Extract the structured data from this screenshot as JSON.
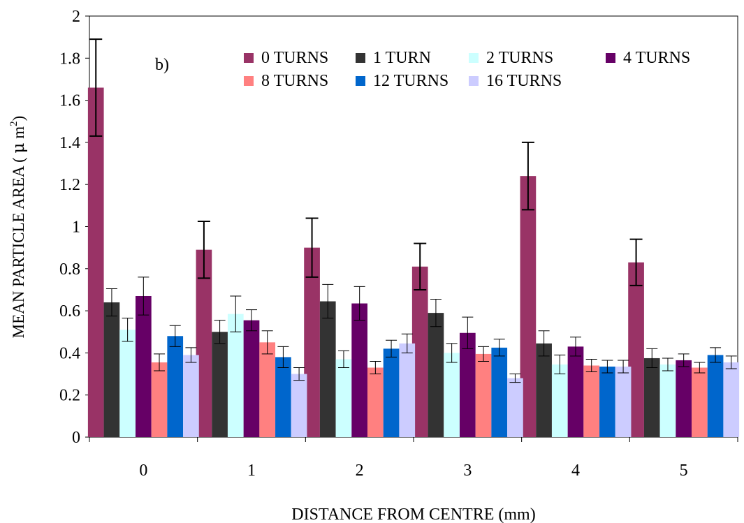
{
  "chart_data": {
    "type": "bar",
    "panel_label": "b)",
    "xlabel": "DISTANCE FROM CENTRE (mm)",
    "ylabel": {
      "prefix": "MEAN PARTICLE AREA ( ",
      "mu": "μ",
      "unit": " m",
      "exponent": "2",
      "suffix": ")"
    },
    "ylim": [
      0,
      2
    ],
    "yticks": [
      "0",
      "0.2",
      "0.4",
      "0.6",
      "0.8",
      "1",
      "1.2",
      "1.4",
      "1.6",
      "1.8",
      "2"
    ],
    "categories": [
      "0",
      "1",
      "2",
      "3",
      "4",
      "5"
    ],
    "grid": false,
    "legend_position": "top-right",
    "series": [
      {
        "name": "0 TURNS",
        "color": "#993366",
        "values": [
          1.66,
          0.89,
          0.9,
          0.81,
          1.24,
          0.83
        ],
        "errors": [
          0.23,
          0.135,
          0.14,
          0.11,
          0.16,
          0.11
        ]
      },
      {
        "name": "1 TURN",
        "color": "#333333",
        "values": [
          0.64,
          0.5,
          0.645,
          0.59,
          0.445,
          0.375
        ],
        "errors": [
          0.065,
          0.055,
          0.08,
          0.065,
          0.06,
          0.045
        ]
      },
      {
        "name": "2 TURNS",
        "color": "#CCFFFF",
        "values": [
          0.51,
          0.585,
          0.37,
          0.4,
          0.345,
          0.345
        ],
        "errors": [
          0.055,
          0.085,
          0.04,
          0.045,
          0.045,
          0.03
        ]
      },
      {
        "name": "4 TURNS",
        "color": "#660066",
        "values": [
          0.67,
          0.555,
          0.635,
          0.495,
          0.43,
          0.365
        ],
        "errors": [
          0.09,
          0.05,
          0.08,
          0.075,
          0.045,
          0.03
        ]
      },
      {
        "name": "8 TURNS",
        "color": "#FF8080",
        "values": [
          0.355,
          0.45,
          0.33,
          0.395,
          0.34,
          0.33
        ],
        "errors": [
          0.04,
          0.055,
          0.03,
          0.035,
          0.03,
          0.025
        ]
      },
      {
        "name": "12 TURNS",
        "color": "#0066CC",
        "values": [
          0.48,
          0.38,
          0.42,
          0.425,
          0.335,
          0.39
        ],
        "errors": [
          0.05,
          0.05,
          0.04,
          0.04,
          0.03,
          0.035
        ]
      },
      {
        "name": "16 TURNS",
        "color": "#CCCCFF",
        "values": [
          0.39,
          0.3,
          0.445,
          0.28,
          0.335,
          0.355
        ],
        "errors": [
          0.035,
          0.03,
          0.045,
          0.02,
          0.03,
          0.03
        ]
      }
    ]
  }
}
